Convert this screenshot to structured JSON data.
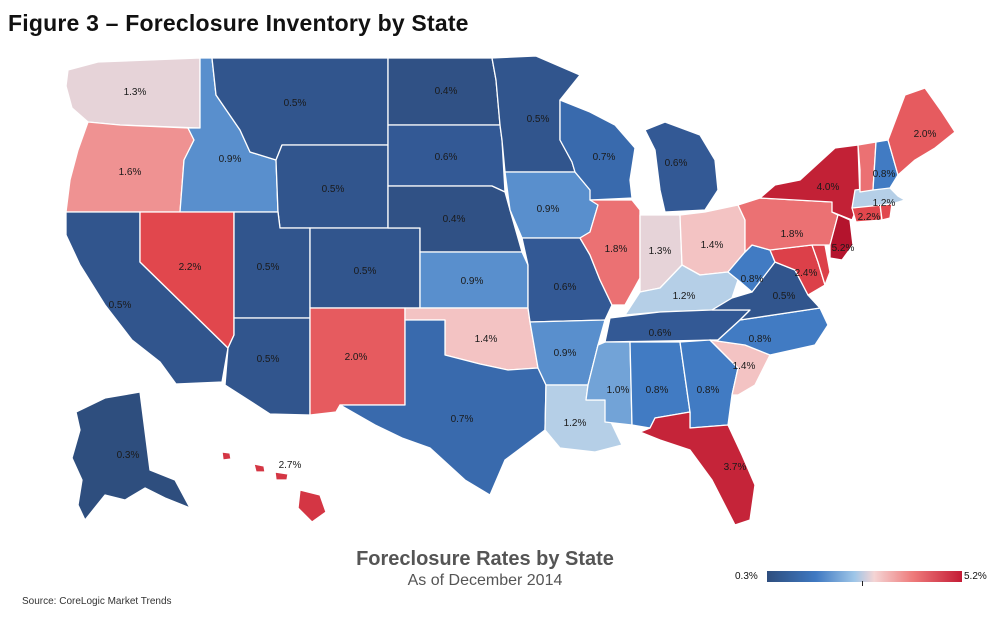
{
  "title": "Figure 3 – Foreclosure Inventory by State",
  "map_title": "Foreclosure Rates by State",
  "map_subtitle": "As of December 2014",
  "source": "Source: CoreLogic Market Trends",
  "legend": {
    "min_label": "0.3%",
    "max_label": "5.2%",
    "min_color": "#2e4e7e",
    "mid_color": "#f4d4d4",
    "max_color": "#c41b35"
  },
  "states": [
    {
      "id": "WA",
      "value": 1.3,
      "label": "1.3%"
    },
    {
      "id": "OR",
      "value": 1.6,
      "label": "1.6%"
    },
    {
      "id": "CA",
      "value": 0.5,
      "label": "0.5%"
    },
    {
      "id": "ID",
      "value": 0.9,
      "label": "0.9%"
    },
    {
      "id": "NV",
      "value": 2.2,
      "label": "2.2%"
    },
    {
      "id": "MT",
      "value": 0.5,
      "label": "0.5%"
    },
    {
      "id": "WY",
      "value": 0.5,
      "label": "0.5%"
    },
    {
      "id": "UT",
      "value": 0.5,
      "label": "0.5%"
    },
    {
      "id": "AZ",
      "value": 0.5,
      "label": "0.5%"
    },
    {
      "id": "CO",
      "value": 0.5,
      "label": "0.5%"
    },
    {
      "id": "NM",
      "value": 2.0,
      "label": "2.0%"
    },
    {
      "id": "ND",
      "value": 0.4,
      "label": "0.4%"
    },
    {
      "id": "SD",
      "value": 0.6,
      "label": "0.6%"
    },
    {
      "id": "NE",
      "value": 0.4,
      "label": "0.4%"
    },
    {
      "id": "KS",
      "value": 0.9,
      "label": "0.9%"
    },
    {
      "id": "OK",
      "value": 1.4,
      "label": "1.4%"
    },
    {
      "id": "TX",
      "value": 0.7,
      "label": "0.7%"
    },
    {
      "id": "MN",
      "value": 0.5,
      "label": "0.5%"
    },
    {
      "id": "IA",
      "value": 0.9,
      "label": "0.9%"
    },
    {
      "id": "MO",
      "value": 0.6,
      "label": "0.6%"
    },
    {
      "id": "AR",
      "value": 0.9,
      "label": "0.9%"
    },
    {
      "id": "LA",
      "value": 1.2,
      "label": "1.2%"
    },
    {
      "id": "WI",
      "value": 0.7,
      "label": "0.7%"
    },
    {
      "id": "IL",
      "value": 1.8,
      "label": "1.8%"
    },
    {
      "id": "MI",
      "value": 0.6,
      "label": "0.6%"
    },
    {
      "id": "IN",
      "value": 1.3,
      "label": "1.3%"
    },
    {
      "id": "OH",
      "value": 1.4,
      "label": "1.4%"
    },
    {
      "id": "KY",
      "value": 1.2,
      "label": "1.2%"
    },
    {
      "id": "TN",
      "value": 0.6,
      "label": "0.6%"
    },
    {
      "id": "MS",
      "value": 1.0,
      "label": "1.0%"
    },
    {
      "id": "AL",
      "value": 0.8,
      "label": "0.8%"
    },
    {
      "id": "GA",
      "value": 0.8,
      "label": "0.8%"
    },
    {
      "id": "FL",
      "value": 3.7,
      "label": "3.7%"
    },
    {
      "id": "SC",
      "value": 1.4,
      "label": "1.4%"
    },
    {
      "id": "NC",
      "value": 0.8,
      "label": "0.8%"
    },
    {
      "id": "VA",
      "value": 0.5,
      "label": "0.5%"
    },
    {
      "id": "WV",
      "value": 0.8,
      "label": "0.8%"
    },
    {
      "id": "MD",
      "value": 2.4,
      "label": "2.4%"
    },
    {
      "id": "DE",
      "value": 2.4,
      "label": ""
    },
    {
      "id": "PA",
      "value": 1.8,
      "label": "1.8%"
    },
    {
      "id": "NJ",
      "value": 5.2,
      "label": "5.2%"
    },
    {
      "id": "NY",
      "value": 4.0,
      "label": "4.0%"
    },
    {
      "id": "CT",
      "value": 2.2,
      "label": "2.2%"
    },
    {
      "id": "RI",
      "value": 2.2,
      "label": ""
    },
    {
      "id": "MA",
      "value": 1.2,
      "label": "1.2%"
    },
    {
      "id": "VT",
      "value": 1.8,
      "label": ""
    },
    {
      "id": "NH",
      "value": 0.8,
      "label": "0.8%"
    },
    {
      "id": "ME",
      "value": 2.0,
      "label": "2.0%"
    },
    {
      "id": "AK",
      "value": 0.3,
      "label": "0.3%"
    },
    {
      "id": "HI",
      "value": 2.7,
      "label": "2.7%"
    }
  ]
}
